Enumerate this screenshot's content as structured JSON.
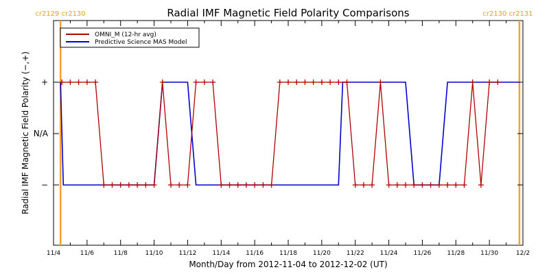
{
  "chart_data": {
    "type": "line",
    "title": "Radial IMF Magnetic Field Polarity Comparisons",
    "xlabel": "Month/Day from 2012-11-04 to 2012-12-02 (UT)",
    "ylabel": "Radial IMF Magnetic Field Polarity (−,+)",
    "xlim": [
      "2012-11-04",
      "2012-12-02"
    ],
    "y_categories": [
      "−",
      "N/A",
      "+"
    ],
    "x_tick_labels": [
      "11/4",
      "11/6",
      "11/8",
      "11/10",
      "11/12",
      "11/14",
      "11/16",
      "11/18",
      "11/20",
      "11/22",
      "11/24",
      "11/26",
      "11/28",
      "11/30",
      "12/2"
    ],
    "cr_lines": [
      {
        "date": "2012-11-04 10:00",
        "label": "cr2129 cr2130"
      },
      {
        "date": "2012-12-01 19:00",
        "label": "cr2130 cr2131"
      }
    ],
    "legend": [
      {
        "name": "OMNI_M (12-hr avg)",
        "color": "#b00000"
      },
      {
        "name": "Predictive Science MAS Model",
        "color": "#0000cc"
      }
    ],
    "series": [
      {
        "name": "OMNI_M (12-hr avg)",
        "color": "#b00000",
        "marker": "plus",
        "points": [
          [
            "2012-11-04 12:00",
            1
          ],
          [
            "2012-11-05 00:00",
            1
          ],
          [
            "2012-11-05 12:00",
            1
          ],
          [
            "2012-11-06 00:00",
            1
          ],
          [
            "2012-11-06 12:00",
            1
          ],
          [
            "2012-11-07 00:00",
            -1
          ],
          [
            "2012-11-07 12:00",
            -1
          ],
          [
            "2012-11-08 00:00",
            -1
          ],
          [
            "2012-11-08 12:00",
            -1
          ],
          [
            "2012-11-09 00:00",
            -1
          ],
          [
            "2012-11-09 12:00",
            -1
          ],
          [
            "2012-11-10 00:00",
            -1
          ],
          [
            "2012-11-10 12:00",
            1
          ],
          [
            "2012-11-11 00:00",
            -1
          ],
          [
            "2012-11-11 12:00",
            -1
          ],
          [
            "2012-11-12 00:00",
            -1
          ],
          [
            "2012-11-12 12:00",
            1
          ],
          [
            "2012-11-13 00:00",
            1
          ],
          [
            "2012-11-13 12:00",
            1
          ],
          [
            "2012-11-14 00:00",
            -1
          ],
          [
            "2012-11-14 12:00",
            -1
          ],
          [
            "2012-11-15 00:00",
            -1
          ],
          [
            "2012-11-15 12:00",
            -1
          ],
          [
            "2012-11-16 00:00",
            -1
          ],
          [
            "2012-11-16 12:00",
            -1
          ],
          [
            "2012-11-17 00:00",
            -1
          ],
          [
            "2012-11-17 12:00",
            1
          ],
          [
            "2012-11-18 00:00",
            1
          ],
          [
            "2012-11-18 12:00",
            1
          ],
          [
            "2012-11-19 00:00",
            1
          ],
          [
            "2012-11-19 12:00",
            1
          ],
          [
            "2012-11-20 00:00",
            1
          ],
          [
            "2012-11-20 12:00",
            1
          ],
          [
            "2012-11-21 00:00",
            1
          ],
          [
            "2012-11-21 12:00",
            1
          ],
          [
            "2012-11-22 00:00",
            -1
          ],
          [
            "2012-11-22 12:00",
            -1
          ],
          [
            "2012-11-23 00:00",
            -1
          ],
          [
            "2012-11-23 12:00",
            1
          ],
          [
            "2012-11-24 00:00",
            -1
          ],
          [
            "2012-11-24 12:00",
            -1
          ],
          [
            "2012-11-25 00:00",
            -1
          ],
          [
            "2012-11-25 12:00",
            -1
          ],
          [
            "2012-11-26 00:00",
            -1
          ],
          [
            "2012-11-26 12:00",
            -1
          ],
          [
            "2012-11-27 00:00",
            -1
          ],
          [
            "2012-11-27 12:00",
            -1
          ],
          [
            "2012-11-28 00:00",
            -1
          ],
          [
            "2012-11-28 12:00",
            -1
          ],
          [
            "2012-11-29 00:00",
            1
          ],
          [
            "2012-11-29 12:00",
            -1
          ],
          [
            "2012-11-30 00:00",
            1
          ],
          [
            "2012-11-30 12:00",
            1
          ]
        ]
      },
      {
        "name": "Predictive Science MAS Model",
        "color": "#0000cc",
        "points": [
          [
            "2012-11-04 10:00",
            1
          ],
          [
            "2012-11-04 14:00",
            -1
          ],
          [
            "2012-11-10 00:00",
            -1
          ],
          [
            "2012-11-10 12:00",
            1
          ],
          [
            "2012-11-12 00:00",
            1
          ],
          [
            "2012-11-12 12:00",
            -1
          ],
          [
            "2012-11-21 00:00",
            -1
          ],
          [
            "2012-11-21 06:00",
            1
          ],
          [
            "2012-11-25 00:00",
            1
          ],
          [
            "2012-11-25 12:00",
            -1
          ],
          [
            "2012-11-27 00:00",
            -1
          ],
          [
            "2012-11-27 12:00",
            1
          ],
          [
            "2012-12-01 19:00",
            1
          ]
        ]
      }
    ],
    "grid": false,
    "legend_position": "top-left"
  }
}
